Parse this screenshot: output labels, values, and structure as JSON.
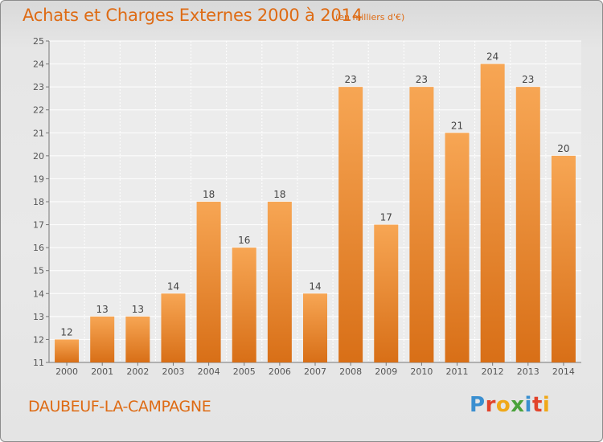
{
  "header": {
    "title": "Achats et Charges Externes 2000 à 2014",
    "subtitle": "(en milliers d'€)"
  },
  "footer": {
    "commune": "DAUBEUF-LA-CAMPAGNE",
    "logo": {
      "text": "Proxiti",
      "letters": [
        "P",
        "r",
        "o",
        "x",
        "i",
        "t",
        "i"
      ],
      "colors": [
        "#3a8fd0",
        "#e2432b",
        "#f0a818",
        "#4aa23c",
        "#3a8fd0",
        "#e2432b",
        "#f0a818"
      ]
    }
  },
  "colors": {
    "bar_light": "#f7a654",
    "bar_dark": "#d86f17",
    "text_accent": "#de6b14"
  },
  "chart_data": {
    "type": "bar",
    "title": "Achats et Charges Externes 2000 à 2014",
    "subtitle": "(en milliers d'€)",
    "categories": [
      "2000",
      "2001",
      "2002",
      "2003",
      "2004",
      "2005",
      "2006",
      "2007",
      "2008",
      "2009",
      "2010",
      "2011",
      "2012",
      "2013",
      "2014"
    ],
    "values": [
      12,
      13,
      13,
      14,
      18,
      16,
      18,
      14,
      23,
      17,
      23,
      21,
      24,
      23,
      20
    ],
    "ylim": [
      11,
      25
    ],
    "yticks": [
      11,
      12,
      13,
      14,
      15,
      16,
      17,
      18,
      19,
      20,
      21,
      22,
      23,
      24,
      25
    ],
    "grid": true,
    "data_labels": true,
    "legend": "none"
  }
}
